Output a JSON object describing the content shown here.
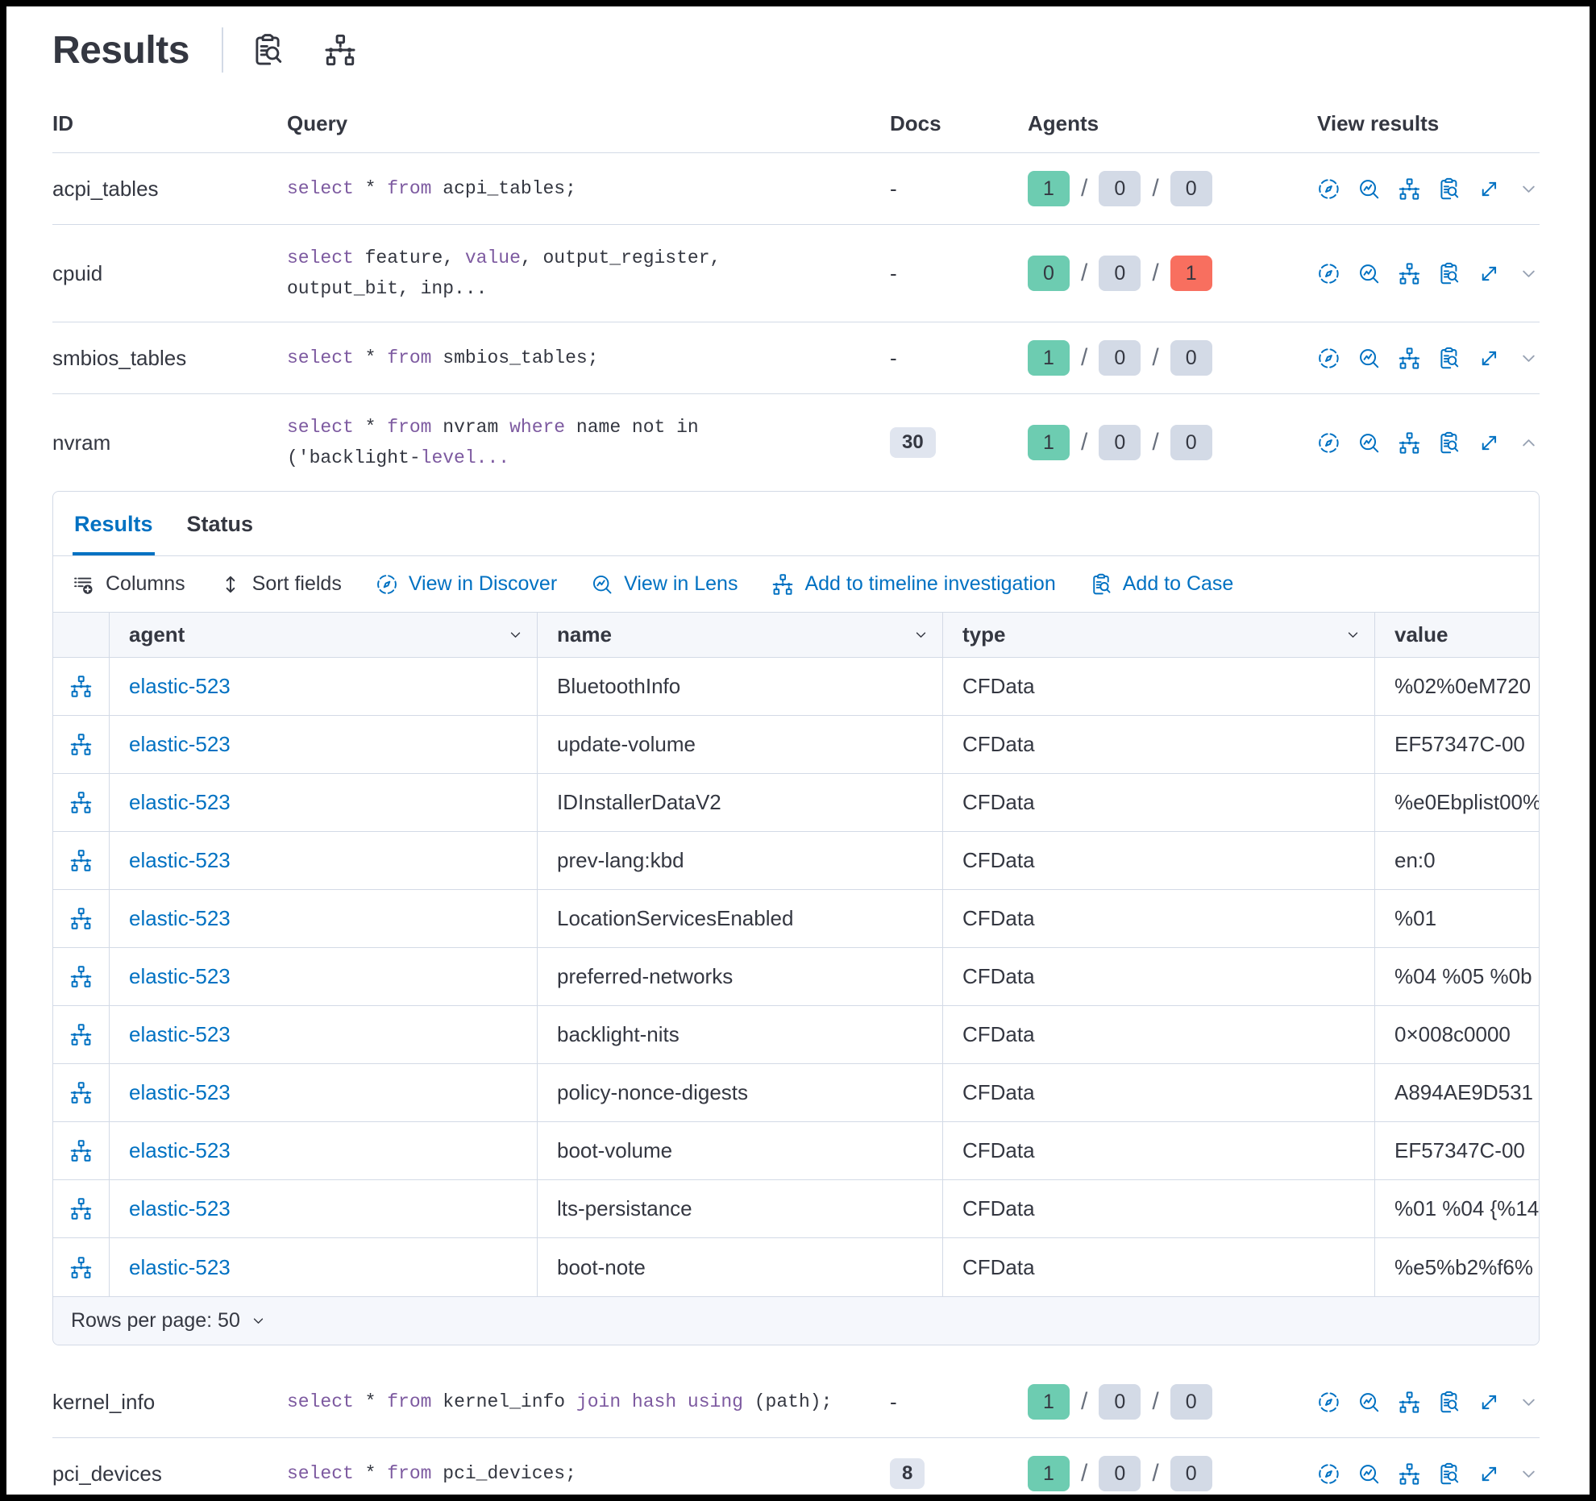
{
  "colors": {
    "primary_blue": "#0071c2",
    "keyword_purple": "#7d5aa0",
    "badge_green": "#6dccb1",
    "badge_gray": "#d3dae6",
    "badge_red": "#f86f5f"
  },
  "header": {
    "title": "Results",
    "icons": [
      {
        "name": "inspect-icon"
      },
      {
        "name": "network-icon"
      }
    ]
  },
  "results_table": {
    "columns": {
      "id": "ID",
      "query": "Query",
      "docs": "Docs",
      "agents": "Agents",
      "view_results": "View results"
    },
    "view_action_icons": [
      "discover-icon",
      "lens-icon",
      "timeline-icon",
      "case-icon",
      "expand-icon"
    ],
    "rows": [
      {
        "id": "acpi_tables",
        "query": [
          {
            "t": "select",
            "k": true
          },
          {
            "t": " * ",
            "k": false
          },
          {
            "t": "from",
            "k": true
          },
          {
            "t": " acpi_tables;",
            "k": false
          }
        ],
        "docs": "-",
        "agents": {
          "values": [
            "1",
            "0",
            "0"
          ],
          "colors": [
            "green",
            "gray",
            "gray"
          ]
        },
        "expanded": false
      },
      {
        "id": "cpuid",
        "query": [
          {
            "t": "select",
            "k": true
          },
          {
            "t": " feature, ",
            "k": false
          },
          {
            "t": "value",
            "k": true
          },
          {
            "t": ", output_register,\noutput_bit, inp...",
            "k": false
          }
        ],
        "docs": "-",
        "agents": {
          "values": [
            "0",
            "0",
            "1"
          ],
          "colors": [
            "green",
            "gray",
            "red"
          ]
        },
        "expanded": false
      },
      {
        "id": "smbios_tables",
        "query": [
          {
            "t": "select",
            "k": true
          },
          {
            "t": " * ",
            "k": false
          },
          {
            "t": "from",
            "k": true
          },
          {
            "t": " smbios_tables;",
            "k": false
          }
        ],
        "docs": "-",
        "agents": {
          "values": [
            "1",
            "0",
            "0"
          ],
          "colors": [
            "green",
            "gray",
            "gray"
          ]
        },
        "expanded": false
      },
      {
        "id": "nvram",
        "query": [
          {
            "t": "select",
            "k": true
          },
          {
            "t": " * ",
            "k": false
          },
          {
            "t": "from",
            "k": true
          },
          {
            "t": " nvram ",
            "k": false
          },
          {
            "t": "where",
            "k": true
          },
          {
            "t": " name not in\n('backlight-",
            "k": false
          },
          {
            "t": "level...",
            "k": true
          }
        ],
        "docs": "30",
        "agents": {
          "values": [
            "1",
            "0",
            "0"
          ],
          "colors": [
            "green",
            "gray",
            "gray"
          ]
        },
        "expanded": true
      },
      {
        "id": "kernel_info",
        "query": [
          {
            "t": "select",
            "k": true
          },
          {
            "t": " * ",
            "k": false
          },
          {
            "t": "from",
            "k": true
          },
          {
            "t": " kernel_info ",
            "k": false
          },
          {
            "t": "join hash using",
            "k": true
          },
          {
            "t": " (path);",
            "k": false
          }
        ],
        "docs": "-",
        "agents": {
          "values": [
            "1",
            "0",
            "0"
          ],
          "colors": [
            "green",
            "gray",
            "gray"
          ]
        },
        "expanded": false
      },
      {
        "id": "pci_devices",
        "query": [
          {
            "t": "select",
            "k": true
          },
          {
            "t": " * ",
            "k": false
          },
          {
            "t": "from",
            "k": true
          },
          {
            "t": " pci_devices;",
            "k": false
          }
        ],
        "docs": "8",
        "agents": {
          "values": [
            "1",
            "0",
            "0"
          ],
          "colors": [
            "green",
            "gray",
            "gray"
          ]
        },
        "expanded": false
      }
    ]
  },
  "panel": {
    "tabs": [
      {
        "label": "Results",
        "active": true
      },
      {
        "label": "Status",
        "active": false
      }
    ],
    "toolbar": [
      {
        "label": "Columns",
        "icon": "columns-icon",
        "style": "dark"
      },
      {
        "label": "Sort fields",
        "icon": "sort-icon",
        "style": "dark"
      },
      {
        "label": "View in Discover",
        "icon": "discover-icon",
        "style": "blue"
      },
      {
        "label": "View in Lens",
        "icon": "lens-icon",
        "style": "blue"
      },
      {
        "label": "Add to timeline investigation",
        "icon": "timeline-icon",
        "style": "blue"
      },
      {
        "label": "Add to Case",
        "icon": "case-icon",
        "style": "blue"
      }
    ],
    "table": {
      "columns": [
        {
          "key": "agent",
          "label": "agent",
          "sortable": true
        },
        {
          "key": "name",
          "label": "name",
          "sortable": true
        },
        {
          "key": "type",
          "label": "type",
          "sortable": true
        },
        {
          "key": "value",
          "label": "value",
          "sortable": false
        }
      ],
      "row_icon": "timeline-icon",
      "rows": [
        {
          "agent": "elastic-523",
          "name": "BluetoothInfo",
          "type": "CFData",
          "value": "%02%0eM720"
        },
        {
          "agent": "elastic-523",
          "name": "update-volume",
          "type": "CFData",
          "value": "EF57347C-00"
        },
        {
          "agent": "elastic-523",
          "name": "IDInstallerDataV2",
          "type": "CFData",
          "value": "%e0Ebplist00%"
        },
        {
          "agent": "elastic-523",
          "name": "prev-lang:kbd",
          "type": "CFData",
          "value": "en:0"
        },
        {
          "agent": "elastic-523",
          "name": "LocationServicesEnabled",
          "type": "CFData",
          "value": "%01"
        },
        {
          "agent": "elastic-523",
          "name": "preferred-networks",
          "type": "CFData",
          "value": "%04 %05 %0b"
        },
        {
          "agent": "elastic-523",
          "name": "backlight-nits",
          "type": "CFData",
          "value": "0×008c0000"
        },
        {
          "agent": "elastic-523",
          "name": "policy-nonce-digests",
          "type": "CFData",
          "value": "A894AE9D531"
        },
        {
          "agent": "elastic-523",
          "name": "boot-volume",
          "type": "CFData",
          "value": "EF57347C-00"
        },
        {
          "agent": "elastic-523",
          "name": "lts-persistance",
          "type": "CFData",
          "value": "%01 %04 {%14"
        },
        {
          "agent": "elastic-523",
          "name": "boot-note",
          "type": "CFData",
          "value": "%e5%b2%f6%"
        }
      ]
    },
    "footer": {
      "rows_per_page": "Rows per page: 50"
    }
  }
}
